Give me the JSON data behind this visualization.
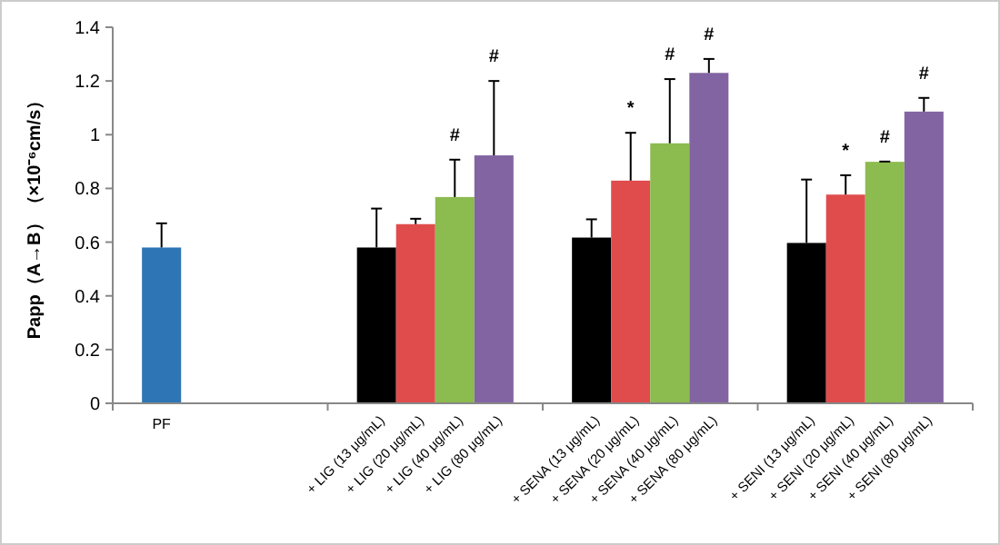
{
  "chart_data": {
    "type": "bar",
    "ylabel": "Papp（A→B）（×10⁻⁶cm/s）",
    "categories": [
      "PF",
      null,
      null,
      null,
      "+ LIG (13 μg/mL)",
      "+ LIG (20 μg/mL)",
      "+ LIG (40 μg/mL)",
      "+ LIG (80 μg/mL)",
      "+ SENA (13 μg/mL)",
      "+ SENA (20 μg/mL)",
      "+ SENA (40 μg/mL)",
      "+ SENA (80 μg/mL)",
      "+ SENI (13 μg/mL)",
      "+ SENI (20 μg/mL)",
      "+ SENI (40 μg/mL)",
      "+ SENI (80 μg/mL)"
    ],
    "values": [
      0.58,
      null,
      null,
      null,
      0.58,
      0.667,
      0.768,
      0.923,
      0.617,
      0.829,
      0.968,
      1.23,
      0.597,
      0.777,
      0.899,
      1.086
    ],
    "colors": [
      "#2e75b6",
      null,
      null,
      null,
      "#000000",
      "#e04c4c",
      "#8cbb4f",
      "#8264a2",
      "#000000",
      "#e04c4c",
      "#8cbb4f",
      "#8264a2",
      "#000000",
      "#e04c4c",
      "#8cbb4f",
      "#8264a2"
    ],
    "errors": [
      [
        0.58,
        0.67
      ],
      null,
      null,
      null,
      [
        0.58,
        0.725
      ],
      [
        0.667,
        0.687
      ],
      [
        0.768,
        0.907
      ],
      [
        0.923,
        1.2
      ],
      [
        0.617,
        0.685
      ],
      [
        0.829,
        1.007
      ],
      [
        0.968,
        1.207
      ],
      [
        1.23,
        1.282
      ],
      [
        0.597,
        0.833
      ],
      [
        0.777,
        0.849
      ],
      [
        0.899,
        0.9
      ],
      [
        1.086,
        1.137
      ]
    ],
    "annotations": [
      {
        "text": "#",
        "x": "+ LIG (40 μg/mL)",
        "y": 0.907
      },
      {
        "text": "#",
        "x": "+ LIG (80 μg/mL)",
        "y": 1.2
      },
      {
        "text": "*",
        "x": "+ SENA (20 μg/mL)",
        "y": 1.007
      },
      {
        "text": "#",
        "x": "+ SENA (40 μg/mL)",
        "y": 1.207
      },
      {
        "text": "#",
        "x": "+ SENA (80 μg/mL)",
        "y": 1.282
      },
      {
        "text": "*",
        "x": "+ SENI (20 μg/mL)",
        "y": 0.849
      },
      {
        "text": "#",
        "x": "+ SENI (40 μg/mL)",
        "y": 0.9
      },
      {
        "text": "#",
        "x": "+ SENI (80 μg/mL)",
        "y": 1.137
      }
    ],
    "ylim": [
      0,
      1.4
    ],
    "yticks": [
      0,
      0.2,
      0.4,
      0.6,
      0.8,
      1,
      1.2,
      1.4
    ],
    "grid": false
  }
}
